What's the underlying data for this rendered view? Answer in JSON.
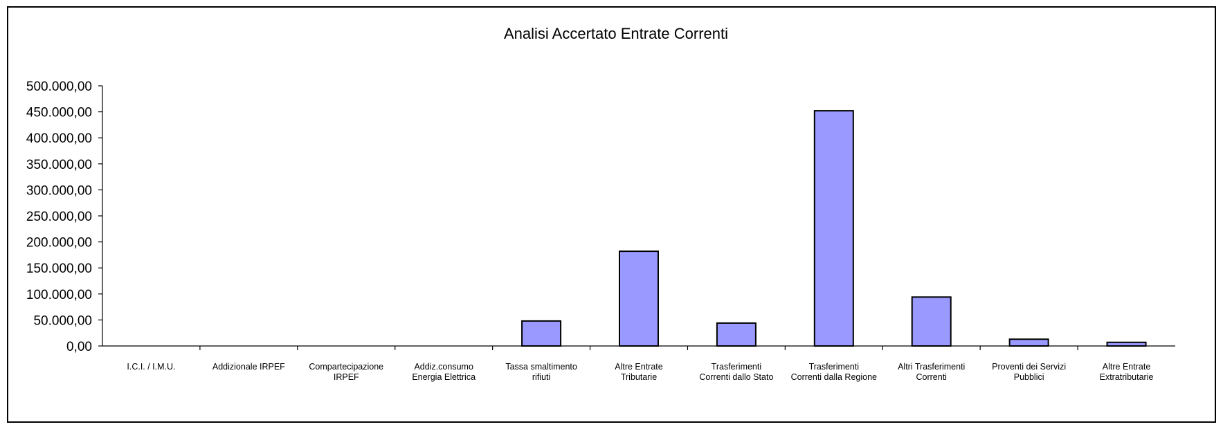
{
  "chart_data": {
    "type": "bar",
    "title": "Analisi Accertato Entrate Correnti",
    "xlabel": "",
    "ylabel": "",
    "ylim": [
      0,
      500000
    ],
    "ytick_values": [
      0,
      50000,
      100000,
      150000,
      200000,
      250000,
      300000,
      350000,
      400000,
      450000,
      500000
    ],
    "ytick_labels": [
      "0,00",
      "50.000,00",
      "100.000,00",
      "150.000,00",
      "200.000,00",
      "250.000,00",
      "300.000,00",
      "350.000,00",
      "400.000,00",
      "450.000,00",
      "500.000,00"
    ],
    "categories": [
      [
        "I.C.I. / I.M.U."
      ],
      [
        "Addizionale IRPEF"
      ],
      [
        "Compartecipazione",
        "IRPEF"
      ],
      [
        "Addiz.consumo",
        "Energia Elettrica"
      ],
      [
        "Tassa smaltimento",
        "rifiuti"
      ],
      [
        "Altre Entrate",
        "Tributarie"
      ],
      [
        "Trasferimenti",
        "Correnti dallo Stato"
      ],
      [
        "Trasferimenti",
        "Correnti dalla Regione"
      ],
      [
        "Altri Trasferimenti",
        "Correnti"
      ],
      [
        "Proventi dei Servizi",
        "Pubblici"
      ],
      [
        "Altre Entrate",
        "Extratributarie"
      ]
    ],
    "values": [
      0,
      0,
      0,
      0,
      48000,
      182000,
      44000,
      452000,
      94000,
      13000,
      7000
    ],
    "bar_color": "#9999FF",
    "bar_edge_color": "#000000",
    "grid": false,
    "legend": "none"
  }
}
